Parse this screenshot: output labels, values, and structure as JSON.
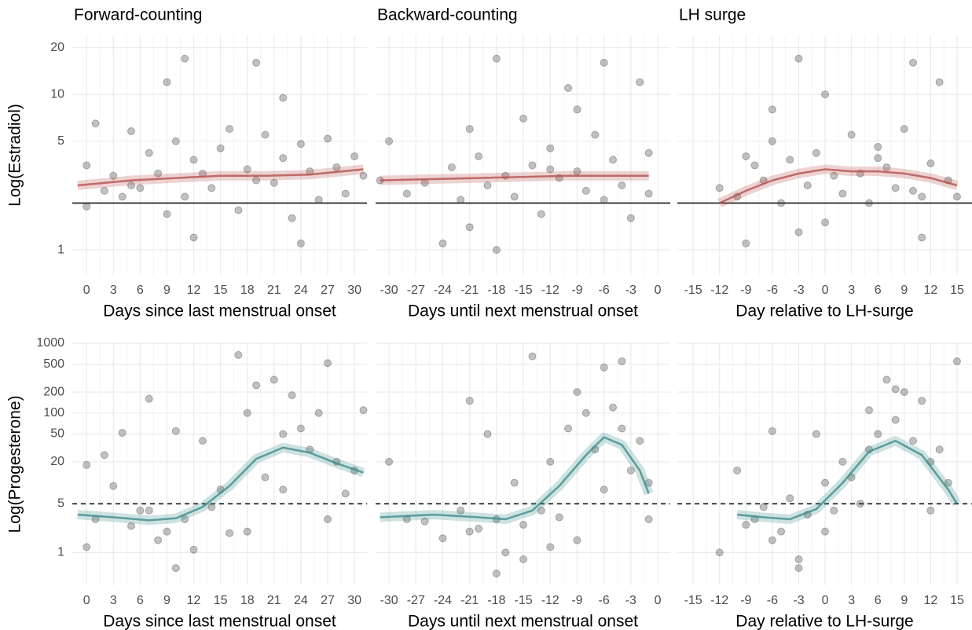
{
  "chart_data": [
    {
      "type": "scatter",
      "title": "Forward-counting",
      "xlabel": "Days since last menstrual onset",
      "ylabel": "Log(Estradiol)",
      "log_y": true,
      "show_ytick_labels": true,
      "xlim": [
        -1.6,
        31.4
      ],
      "xticks": [
        0,
        3,
        6,
        9,
        12,
        15,
        18,
        21,
        24,
        27,
        30
      ],
      "ylim": [
        0.69,
        24
      ],
      "yticks": [
        1,
        5,
        10,
        20
      ],
      "hline": {
        "value": 2,
        "dashed": false
      },
      "series": [
        {
          "type": "scatter",
          "color": "#333333",
          "x": [
            0,
            0,
            1,
            2,
            3,
            4,
            5,
            6,
            7,
            8,
            9,
            9,
            10,
            11,
            11,
            12,
            13,
            14,
            15,
            16,
            17,
            18,
            19,
            20,
            21,
            22,
            22,
            23,
            24,
            25,
            26,
            27,
            28,
            29,
            30,
            31,
            12,
            19,
            24,
            5
          ],
          "values": [
            3.5,
            1.9,
            6.5,
            2.4,
            3,
            2.2,
            5.8,
            2.5,
            4.2,
            3.1,
            12,
            1.7,
            5,
            17,
            2.2,
            3.8,
            3.1,
            2.5,
            4.5,
            6,
            1.8,
            3.3,
            16,
            5.5,
            2.7,
            3.9,
            9.5,
            1.6,
            4.8,
            3.2,
            2.1,
            5.2,
            3.4,
            2.3,
            4,
            3,
            1.2,
            2.8,
            1.1,
            2.6
          ]
        },
        {
          "type": "line",
          "color": "#b5504d",
          "x": [
            -1,
            5,
            10,
            15,
            20,
            25,
            31
          ],
          "values": [
            2.6,
            2.8,
            2.9,
            3.0,
            3.0,
            3.05,
            3.3
          ]
        }
      ]
    },
    {
      "type": "scatter",
      "title": "Backward-counting",
      "xlabel": "Days until next menstrual onset",
      "log_y": true,
      "show_ytick_labels": false,
      "xlim": [
        -31.5,
        1.4
      ],
      "xticks": [
        -30,
        -27,
        -24,
        -21,
        -18,
        -15,
        -12,
        -9,
        -6,
        -3,
        0
      ],
      "ylim": [
        0.69,
        24
      ],
      "yticks": [
        1,
        5,
        10,
        20
      ],
      "hline": {
        "value": 2,
        "dashed": false
      },
      "series": [
        {
          "type": "scatter",
          "color": "#333333",
          "x": [
            -31,
            -30,
            -28,
            -26,
            -24,
            -23,
            -22,
            -21,
            -20,
            -19,
            -18,
            -17,
            -16,
            -15,
            -14,
            -13,
            -12,
            -11,
            -10,
            -9,
            -8,
            -7,
            -6,
            -6,
            -5,
            -4,
            -3,
            -2,
            -1,
            -1,
            -18,
            -12,
            -21,
            -9
          ],
          "values": [
            2.8,
            5,
            2.3,
            2.7,
            1.1,
            3.4,
            2.1,
            6,
            4,
            2.6,
            17,
            3,
            2.2,
            7,
            3.5,
            1.7,
            4.5,
            2.9,
            11,
            3.2,
            2.4,
            5.5,
            16,
            2.1,
            3.8,
            2.6,
            1.6,
            12,
            4.2,
            2.3,
            1,
            3.3,
            1.4,
            8
          ]
        },
        {
          "type": "line",
          "color": "#b5504d",
          "x": [
            -31,
            -20,
            -10,
            -1
          ],
          "values": [
            2.8,
            2.9,
            3.0,
            3.0
          ]
        }
      ]
    },
    {
      "type": "scatter",
      "title": "LH surge",
      "xlabel": "Day relative to LH-surge",
      "log_y": true,
      "show_ytick_labels": false,
      "xlim": [
        -16.8,
        16.7
      ],
      "xticks": [
        -15,
        -12,
        -9,
        -6,
        -3,
        0,
        3,
        6,
        9,
        12,
        15
      ],
      "ylim": [
        0.69,
        24
      ],
      "yticks": [
        1,
        5,
        10,
        20
      ],
      "hline": {
        "value": 2,
        "dashed": false
      },
      "series": [
        {
          "type": "scatter",
          "color": "#333333",
          "x": [
            -12,
            -10,
            -9,
            -8,
            -7,
            -6,
            -5,
            -4,
            -3,
            -2,
            -1,
            0,
            1,
            2,
            3,
            4,
            5,
            6,
            7,
            8,
            9,
            10,
            11,
            12,
            13,
            14,
            15,
            -3,
            0,
            6,
            11,
            -9,
            -6,
            10
          ],
          "values": [
            2.5,
            2.2,
            1.1,
            3.5,
            2.8,
            5,
            2,
            3.8,
            17,
            2.6,
            4.2,
            10,
            3,
            2.3,
            5.5,
            3.1,
            2,
            4.6,
            3.4,
            2.5,
            6,
            16,
            2.2,
            3.6,
            12,
            2.8,
            2.2,
            1.3,
            1.5,
            3.9,
            1.2,
            4,
            8,
            2.4
          ]
        },
        {
          "type": "line",
          "color": "#b5504d",
          "x": [
            -12,
            -9,
            -6,
            -3,
            0,
            3,
            6,
            9,
            12,
            15
          ],
          "values": [
            2.0,
            2.4,
            2.8,
            3.1,
            3.3,
            3.2,
            3.2,
            3.1,
            2.9,
            2.6
          ]
        }
      ]
    },
    {
      "type": "scatter",
      "xlabel": "Days since last menstrual onset",
      "ylabel": "Log(Progesterone)",
      "log_y": true,
      "show_ytick_labels": true,
      "xlim": [
        -1.6,
        31.4
      ],
      "xticks": [
        0,
        3,
        6,
        9,
        12,
        15,
        18,
        21,
        24,
        27,
        30
      ],
      "ylim": [
        0.34,
        1000
      ],
      "yticks": [
        1,
        5,
        20,
        50,
        100,
        200,
        500,
        1000
      ],
      "hline": {
        "value": 5,
        "dashed": true
      },
      "series": [
        {
          "type": "scatter",
          "color": "#333333",
          "x": [
            0,
            0,
            1,
            2,
            3,
            4,
            5,
            6,
            7,
            8,
            9,
            10,
            11,
            12,
            13,
            14,
            15,
            16,
            17,
            18,
            19,
            20,
            21,
            22,
            22,
            23,
            24,
            25,
            26,
            27,
            28,
            29,
            30,
            31,
            10,
            18,
            27,
            7
          ],
          "values": [
            18,
            1.2,
            3,
            25,
            9,
            52,
            2.4,
            4,
            160,
            1.5,
            2,
            55,
            3,
            1.1,
            40,
            4.5,
            8,
            1.9,
            680,
            100,
            250,
            12,
            300,
            50,
            8,
            180,
            60,
            30,
            100,
            520,
            20,
            7,
            15,
            110,
            0.6,
            2,
            3,
            4
          ]
        },
        {
          "type": "line",
          "color": "#3d8c8c",
          "x": [
            -1,
            3,
            7,
            10,
            13,
            16,
            19,
            22,
            25,
            28,
            31
          ],
          "values": [
            3.5,
            3.2,
            2.9,
            3.1,
            4.5,
            9,
            22,
            32,
            27,
            19,
            14
          ]
        }
      ]
    },
    {
      "type": "scatter",
      "xlabel": "Days until next menstrual onset",
      "log_y": true,
      "show_ytick_labels": false,
      "xlim": [
        -31.5,
        1.4
      ],
      "xticks": [
        -30,
        -27,
        -24,
        -21,
        -18,
        -15,
        -12,
        -9,
        -6,
        -3,
        0
      ],
      "ylim": [
        0.34,
        1000
      ],
      "yticks": [
        1,
        5,
        20,
        50,
        100,
        200,
        500,
        1000
      ],
      "hline": {
        "value": 5,
        "dashed": true
      },
      "series": [
        {
          "type": "scatter",
          "color": "#333333",
          "x": [
            -30,
            -28,
            -26,
            -24,
            -22,
            -21,
            -20,
            -19,
            -18,
            -17,
            -16,
            -15,
            -14,
            -13,
            -12,
            -11,
            -10,
            -9,
            -8,
            -7,
            -6,
            -5,
            -4,
            -3,
            -2,
            -1,
            -6,
            -9,
            -15,
            -21,
            -18,
            -12,
            -1,
            -4
          ],
          "values": [
            20,
            3,
            2.8,
            1.6,
            4,
            150,
            2.2,
            50,
            3,
            1,
            10,
            2.5,
            650,
            4,
            20,
            3.2,
            60,
            200,
            100,
            30,
            450,
            120,
            60,
            15,
            40,
            3,
            8,
            1.5,
            0.8,
            2,
            0.5,
            1.2,
            10,
            550
          ]
        },
        {
          "type": "line",
          "color": "#3d8c8c",
          "x": [
            -31,
            -25,
            -20,
            -17,
            -14,
            -11,
            -8,
            -6,
            -4,
            -2,
            -1
          ],
          "values": [
            3.2,
            3.5,
            3.2,
            3.0,
            4,
            9,
            25,
            45,
            35,
            15,
            7
          ]
        }
      ]
    },
    {
      "type": "scatter",
      "xlabel": "Day relative to LH-surge",
      "log_y": true,
      "show_ytick_labels": false,
      "xlim": [
        -16.8,
        16.7
      ],
      "xticks": [
        -15,
        -12,
        -9,
        -6,
        -3,
        0,
        3,
        6,
        9,
        12,
        15
      ],
      "ylim": [
        0.34,
        1000
      ],
      "yticks": [
        1,
        5,
        20,
        50,
        100,
        200,
        500,
        1000
      ],
      "hline": {
        "value": 5,
        "dashed": true
      },
      "series": [
        {
          "type": "scatter",
          "color": "#333333",
          "x": [
            -12,
            -10,
            -9,
            -8,
            -7,
            -6,
            -5,
            -4,
            -3,
            -2,
            -1,
            0,
            1,
            2,
            3,
            4,
            5,
            6,
            7,
            8,
            9,
            10,
            11,
            12,
            13,
            14,
            15,
            -6,
            -3,
            0,
            5,
            8,
            12
          ],
          "values": [
            1,
            15,
            2.5,
            3,
            4.5,
            55,
            2,
            6,
            0.6,
            3.5,
            50,
            10,
            4,
            20,
            12,
            5,
            110,
            50,
            300,
            80,
            200,
            40,
            150,
            20,
            30,
            10,
            550,
            1.5,
            0.8,
            2,
            30,
            220,
            4
          ]
        },
        {
          "type": "line",
          "color": "#3d8c8c",
          "x": [
            -10,
            -7,
            -4,
            -1,
            2,
            5,
            8,
            11,
            14,
            15
          ],
          "values": [
            3.5,
            3.2,
            3.0,
            4.2,
            10,
            28,
            40,
            25,
            8,
            5
          ]
        }
      ]
    }
  ]
}
